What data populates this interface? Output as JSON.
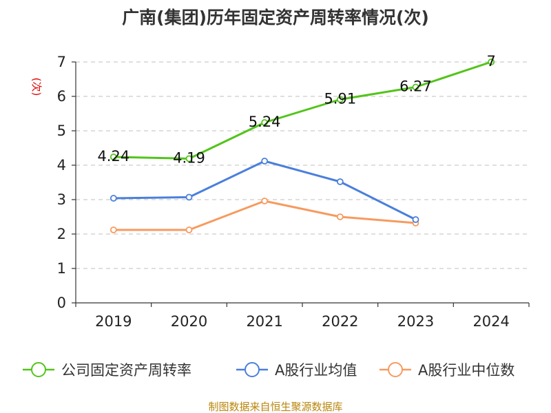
{
  "chart_data": {
    "type": "line",
    "title": "广南(集团)历年固定资产周转率情况(次)",
    "ylabel": "(次)",
    "categories": [
      "2019",
      "2020",
      "2021",
      "2022",
      "2023",
      "2024"
    ],
    "ylim": [
      0,
      7
    ],
    "yticks": [
      0,
      1,
      2,
      3,
      4,
      5,
      6,
      7
    ],
    "grid": true,
    "legend_position": "bottom",
    "series": [
      {
        "name": "公司固定资产周转率",
        "color": "#52c41a",
        "values": [
          4.24,
          4.19,
          5.24,
          5.91,
          6.27,
          7
        ],
        "labels": [
          "4.24",
          "4.19",
          "5.24",
          "5.91",
          "6.27",
          "7"
        ]
      },
      {
        "name": "A股行业均值",
        "color": "#4a7fdc",
        "values": [
          3.04,
          3.07,
          4.12,
          3.52,
          2.42,
          null
        ]
      },
      {
        "name": "A股行业中位数",
        "color": "#f79a5e",
        "values": [
          2.12,
          2.12,
          2.96,
          2.5,
          2.32,
          null
        ]
      }
    ]
  },
  "footer": {
    "source": "制图数据来自恒生聚源数据库"
  }
}
